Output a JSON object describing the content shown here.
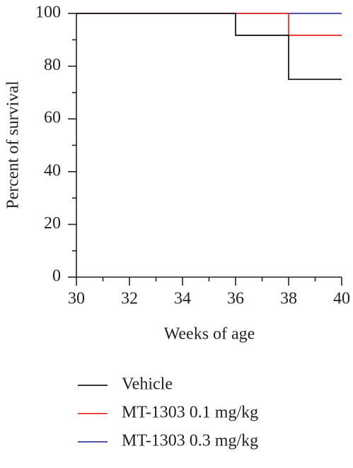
{
  "chart_data": {
    "type": "step",
    "x_label": "Weeks of age",
    "y_label": "Percent of survival",
    "x": [
      30,
      36,
      38,
      40
    ],
    "series": [
      {
        "name": "Vehicle",
        "color": "#1a1a1a",
        "values": [
          100,
          91.7,
          75,
          75
        ]
      },
      {
        "name": "MT-1303 0.1 mg/kg",
        "color": "#e8322b",
        "values": [
          100,
          100,
          91.7,
          91.7
        ]
      },
      {
        "name": "MT-1303 0.3 mg/kg",
        "color": "#3b3b9b",
        "values": [
          100,
          100,
          100,
          100
        ]
      }
    ],
    "xlim": [
      30,
      40
    ],
    "xticks": [
      30,
      32,
      34,
      36,
      38,
      40
    ],
    "xminor_ticks": [
      31,
      33,
      35,
      37,
      39
    ],
    "ylim": [
      0,
      100
    ],
    "yticks": [
      0,
      20,
      40,
      60,
      80,
      100
    ],
    "yminor_ticks": [
      10,
      30,
      50,
      70,
      90
    ],
    "grid": false,
    "legend": "bottom"
  }
}
